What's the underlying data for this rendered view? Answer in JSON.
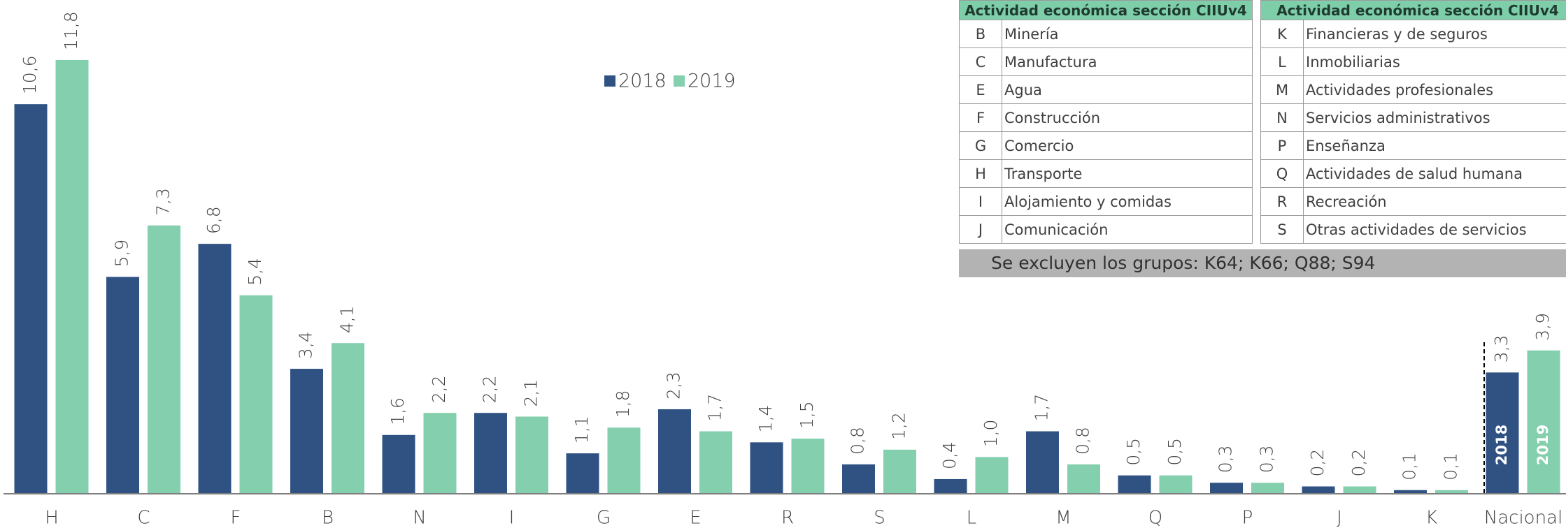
{
  "chart_data": {
    "type": "bar",
    "categories": [
      "H",
      "C",
      "F",
      "B",
      "N",
      "I",
      "G",
      "E",
      "R",
      "S",
      "L",
      "M",
      "Q",
      "P",
      "J",
      "K",
      "Nacional"
    ],
    "series": [
      {
        "name": "2018",
        "color": "#2f5283",
        "values": [
          10.6,
          5.9,
          6.8,
          3.4,
          1.6,
          2.2,
          1.1,
          2.3,
          1.4,
          0.8,
          0.4,
          1.7,
          0.5,
          0.3,
          0.2,
          0.1,
          3.3
        ],
        "value_labels": [
          "10,6",
          "5,9",
          "6,8",
          "3,4",
          "1,6",
          "2,2",
          "1,1",
          "2,3",
          "1,4",
          "0,8",
          "0,4",
          "1,7",
          "0,5",
          "0,3",
          "0,2",
          "0,1",
          "3,3"
        ]
      },
      {
        "name": "2019",
        "color": "#84cfae",
        "values": [
          11.8,
          7.3,
          5.4,
          4.1,
          2.2,
          2.1,
          1.8,
          1.7,
          1.5,
          1.2,
          1.0,
          0.8,
          0.5,
          0.3,
          0.2,
          0.1,
          3.9
        ],
        "value_labels": [
          "11,8",
          "7,3",
          "5,4",
          "4,1",
          "2,2",
          "2,1",
          "1,8",
          "1,7",
          "1,5",
          "1,2",
          "1,0",
          "0,8",
          "0,5",
          "0,3",
          "0,2",
          "0,1",
          "3,9"
        ]
      }
    ]
  },
  "table": {
    "header": [
      "Actividad económica sección CIIUv4",
      "Actividad económica sección CIIUv4"
    ],
    "rows": [
      [
        "B",
        "Minería",
        "K",
        "Financieras y de seguros"
      ],
      [
        "C",
        "Manufactura",
        "L",
        "Inmobiliarias"
      ],
      [
        "E",
        "Agua",
        "M",
        "Actividades profesionales"
      ],
      [
        "F",
        "Construcción",
        "N",
        "Servicios administrativos"
      ],
      [
        "G",
        "Comercio",
        "P",
        "Enseñanza"
      ],
      [
        "H",
        "Transporte",
        "Q",
        "Actividades de salud humana"
      ],
      [
        "I",
        "Alojamiento y comidas",
        "R",
        "Recreación"
      ],
      [
        "J",
        "Comunicación",
        "S",
        "Otras actividades de servicios"
      ]
    ],
    "note": "Se excluyen los grupos: K64; K66; Q88; S94"
  }
}
